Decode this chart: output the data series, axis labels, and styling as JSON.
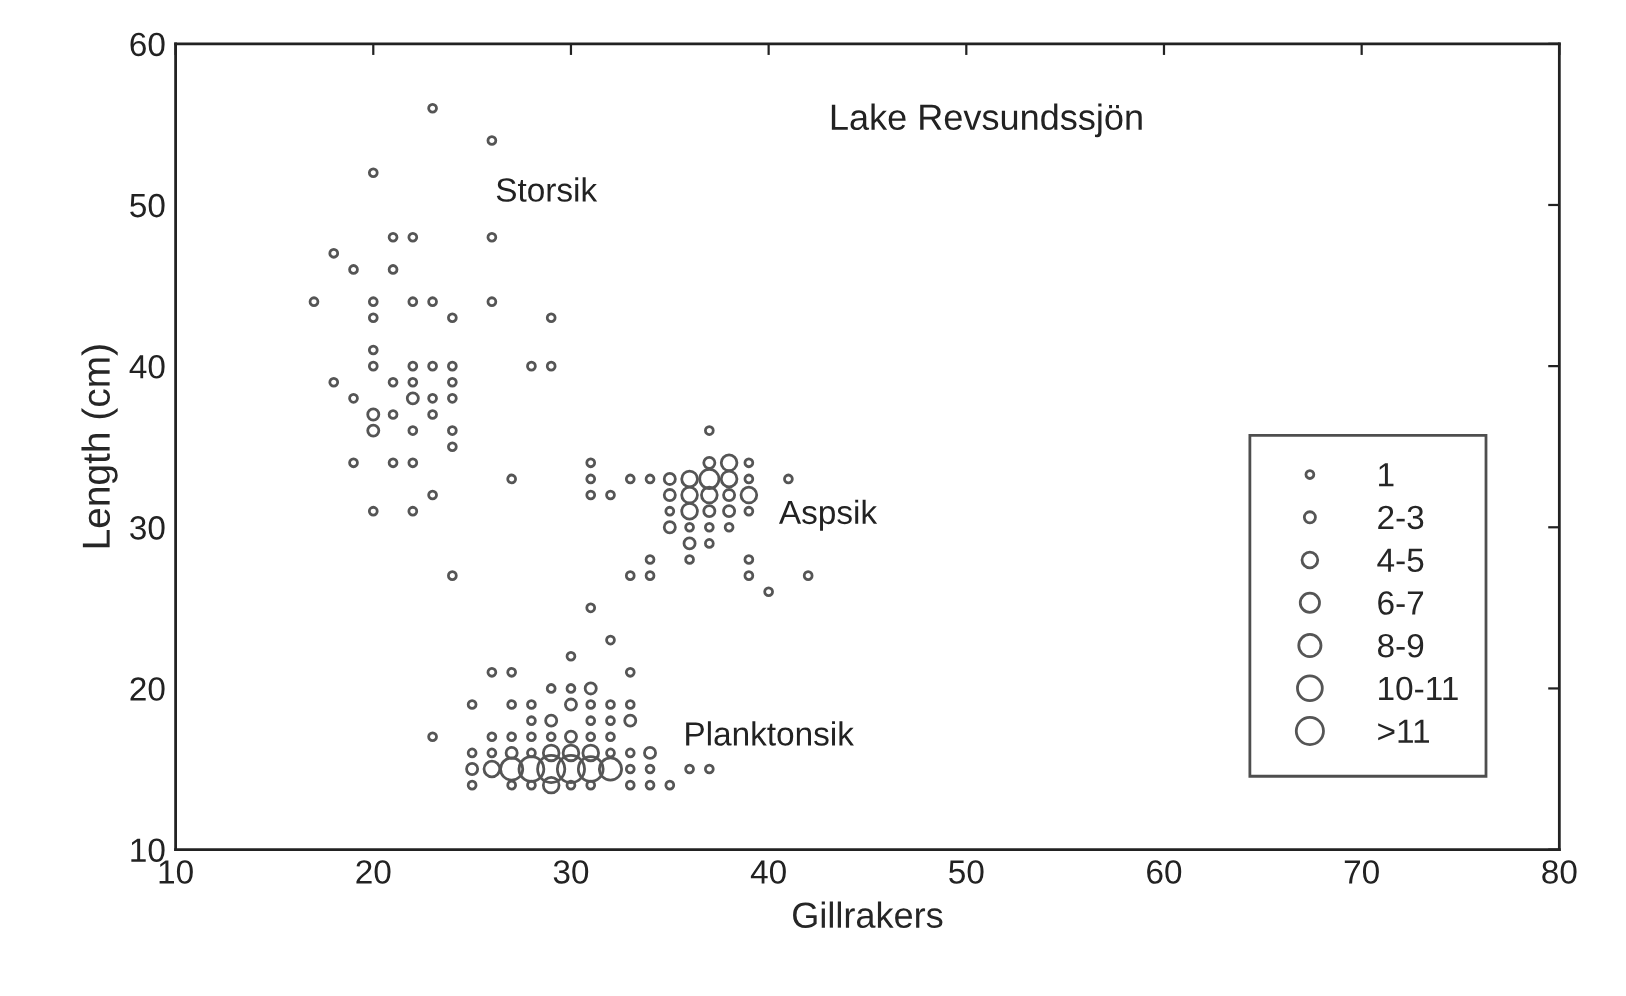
{
  "chart_data": {
    "type": "bubble",
    "title": "Lake Revsundssjön",
    "xlabel": "Gillrakers",
    "ylabel": "Length (cm)",
    "x": [
      23,
      26,
      20,
      21,
      22,
      26,
      18,
      19,
      21,
      17,
      20,
      22,
      23,
      26,
      20,
      24,
      29,
      20,
      20,
      22,
      23,
      24,
      28,
      29,
      18,
      21,
      22,
      24,
      19,
      22,
      23,
      24,
      20,
      21,
      23,
      20,
      22,
      24,
      24,
      19,
      21,
      22,
      27,
      23,
      20,
      22,
      24,
      37,
      31,
      37,
      38,
      39,
      31,
      33,
      34,
      35,
      36,
      37,
      38,
      39,
      41,
      31,
      32,
      35,
      36,
      37,
      38,
      39,
      35,
      36,
      37,
      38,
      39,
      35,
      36,
      37,
      38,
      36,
      37,
      34,
      36,
      39,
      33,
      34,
      39,
      42,
      40,
      31,
      32,
      30,
      26,
      27,
      33,
      29,
      30,
      31,
      25,
      27,
      28,
      30,
      31,
      32,
      33,
      28,
      29,
      31,
      32,
      33,
      23,
      26,
      27,
      28,
      29,
      30,
      31,
      32,
      25,
      26,
      27,
      28,
      29,
      30,
      31,
      32,
      33,
      34,
      25,
      26,
      27,
      28,
      29,
      30,
      31,
      32,
      33,
      34,
      36,
      37,
      25,
      27,
      28,
      29,
      30,
      31,
      33,
      34,
      35
    ],
    "values": [
      56,
      54,
      52,
      48,
      48,
      48,
      47,
      46,
      46,
      44,
      44,
      44,
      44,
      44,
      43,
      43,
      43,
      41,
      40,
      40,
      40,
      40,
      40,
      40,
      39,
      39,
      39,
      39,
      38,
      38,
      38,
      38,
      37,
      37,
      37,
      36,
      36,
      36,
      35,
      34,
      34,
      34,
      33,
      32,
      31,
      31,
      27,
      36,
      34,
      34,
      34,
      34,
      33,
      33,
      33,
      33,
      33,
      33,
      33,
      33,
      33,
      32,
      32,
      32,
      32,
      32,
      32,
      32,
      31,
      31,
      31,
      31,
      31,
      30,
      30,
      30,
      30,
      29,
      29,
      28,
      28,
      28,
      27,
      27,
      27,
      27,
      26,
      25,
      23,
      22,
      21,
      21,
      21,
      20,
      20,
      20,
      19,
      19,
      19,
      19,
      19,
      19,
      19,
      18,
      18,
      18,
      18,
      18,
      17,
      17,
      17,
      17,
      17,
      17,
      17,
      17,
      16,
      16,
      16,
      16,
      16,
      16,
      16,
      16,
      16,
      16,
      15,
      15,
      15,
      15,
      15,
      15,
      15,
      15,
      15,
      15,
      15,
      15,
      14,
      14,
      14,
      14,
      14,
      14,
      14,
      14,
      14
    ],
    "sizes": [
      1,
      1,
      1,
      1,
      1,
      1,
      1,
      1,
      1,
      1,
      1,
      1,
      1,
      1,
      1,
      1,
      1,
      1,
      1,
      1,
      1,
      1,
      1,
      1,
      1,
      1,
      1,
      1,
      1,
      2,
      1,
      1,
      2,
      1,
      1,
      2,
      1,
      1,
      1,
      1,
      1,
      1,
      1,
      1,
      1,
      1,
      1,
      1,
      1,
      2,
      4,
      1,
      1,
      1,
      1,
      2,
      4,
      6,
      4,
      1,
      1,
      1,
      1,
      2,
      4,
      4,
      2,
      4,
      1,
      4,
      2,
      2,
      1,
      2,
      1,
      1,
      1,
      2,
      1,
      1,
      1,
      1,
      1,
      1,
      1,
      1,
      1,
      1,
      1,
      1,
      1,
      1,
      1,
      1,
      1,
      2,
      1,
      1,
      1,
      2,
      1,
      1,
      1,
      1,
      2,
      1,
      1,
      2,
      1,
      1,
      1,
      1,
      1,
      2,
      1,
      1,
      1,
      1,
      2,
      1,
      4,
      4,
      4,
      1,
      1,
      2,
      2,
      4,
      8,
      10,
      12,
      12,
      10,
      8,
      1,
      1,
      1,
      1,
      1,
      1,
      1,
      4,
      1,
      1,
      1,
      1,
      1
    ],
    "size_legend": [
      {
        "value": 1,
        "label": "1"
      },
      {
        "value": 2,
        "label": "2-3"
      },
      {
        "value": 4,
        "label": "4-5"
      },
      {
        "value": 6,
        "label": "6-7"
      },
      {
        "value": 8,
        "label": "8-9"
      },
      {
        "value": 10,
        "label": "10-11"
      },
      {
        "value": 12,
        "label": ">11"
      }
    ],
    "color": "#555555",
    "marker": "circle",
    "xlim": [
      10,
      80
    ],
    "xticks": [
      10,
      20,
      30,
      40,
      50,
      60,
      70,
      80
    ],
    "ylim": [
      10,
      60
    ],
    "yticks": [
      10,
      20,
      30,
      40,
      50,
      60
    ],
    "grid": false,
    "annotations": [
      "Storsik",
      "Aspsik",
      "Planktonsik"
    ]
  }
}
